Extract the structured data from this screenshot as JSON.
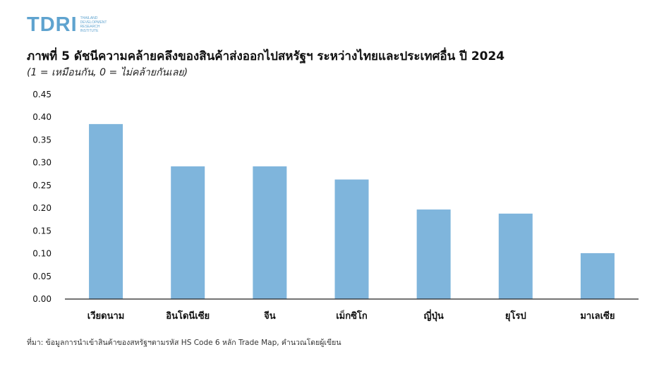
{
  "logo": {
    "mark": "TDRI",
    "sub_lines": [
      "THAILAND",
      "DEVELOPMENT",
      "RESEARCH",
      "INSTITUTE"
    ]
  },
  "source": "ที่มา: ข้อมูลการนำเข้าสินค้าของสหรัฐฯตามรหัส HS Code 6 หลัก Trade Map, คำนวณโดยผู้เขียน",
  "colors": {
    "bar": "#7fb5dc",
    "axis": "#222222"
  },
  "chart_data": {
    "type": "bar",
    "title": "ภาพที่ 5 ดัชนีความคล้ายคลึงของสินค้าส่งออกไปสหรัฐฯ ระหว่างไทยและประเทศอื่น ปี 2024",
    "subtitle": "(1 = เหมือนกัน, 0 = ไม่คล้ายกันเลย)",
    "categories": [
      "เวียดนาม",
      "อินโดนีเซีย",
      "จีน",
      "เม็กซิโก",
      "ญี่ปุ่น",
      "ยุโรป",
      "มาเลเซีย"
    ],
    "values": [
      0.385,
      0.292,
      0.292,
      0.263,
      0.197,
      0.188,
      0.101
    ],
    "ylim": [
      0,
      0.45
    ],
    "yticks": [
      "0.00",
      "0.05",
      "0.10",
      "0.15",
      "0.20",
      "0.25",
      "0.30",
      "0.35",
      "0.40",
      "0.45"
    ],
    "xlabel": "",
    "ylabel": "",
    "grid": false
  }
}
